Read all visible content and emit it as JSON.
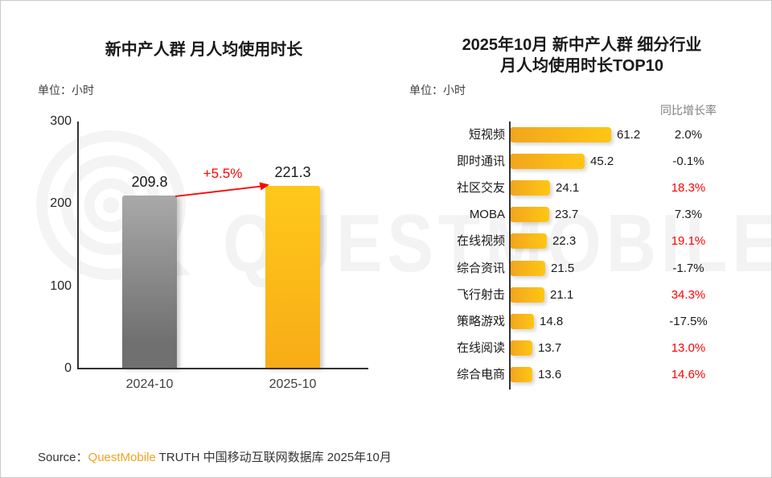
{
  "watermark": {
    "text": "QUESTMOBILE"
  },
  "left_chart": {
    "title": "新中产人群 月人均使用时长",
    "unit_label": "单位：小时",
    "y_ticks": [
      "300",
      "200",
      "100",
      "0"
    ],
    "y_max": 300,
    "categories": [
      "2024-10",
      "2025-10"
    ],
    "values": [
      209.8,
      221.3
    ],
    "value_labels": [
      "209.8",
      "221.3"
    ],
    "growth_label": "+5.5%"
  },
  "right_chart": {
    "title_line1": "2025年10月 新中产人群 细分行业",
    "title_line2": "月人均使用时长TOP10",
    "unit_label": "单位：小时",
    "growth_header": "同比增长率",
    "rows": [
      {
        "label": "短视频",
        "value": 61.2,
        "value_label": "61.2",
        "growth": "2.0%",
        "growth_red": false
      },
      {
        "label": "即时通讯",
        "value": 45.2,
        "value_label": "45.2",
        "growth": "-0.1%",
        "growth_red": false
      },
      {
        "label": "社区交友",
        "value": 24.1,
        "value_label": "24.1",
        "growth": "18.3%",
        "growth_red": true
      },
      {
        "label": "MOBA",
        "value": 23.7,
        "value_label": "23.7",
        "growth": "7.3%",
        "growth_red": false
      },
      {
        "label": "在线视频",
        "value": 22.3,
        "value_label": "22.3",
        "growth": "19.1%",
        "growth_red": true
      },
      {
        "label": "综合资讯",
        "value": 21.5,
        "value_label": "21.5",
        "growth": "-1.7%",
        "growth_red": false
      },
      {
        "label": "飞行射击",
        "value": 21.1,
        "value_label": "21.1",
        "growth": "34.3%",
        "growth_red": true
      },
      {
        "label": "策略游戏",
        "value": 14.8,
        "value_label": "14.8",
        "growth": "-17.5%",
        "growth_red": false
      },
      {
        "label": "在线阅读",
        "value": 13.7,
        "value_label": "13.7",
        "growth": "13.0%",
        "growth_red": true
      },
      {
        "label": "综合电商",
        "value": 13.6,
        "value_label": "13.6",
        "growth": "14.6%",
        "growth_red": true
      }
    ]
  },
  "source": {
    "prefix": "Source：",
    "brand": "QuestMobile",
    "suffix": " TRUTH 中国移动互联网数据库 2025年10月"
  },
  "colors": {
    "red": "#ff0000",
    "text_dark": "#1a1a1a",
    "brand_orange": "#f7a11e",
    "bar_yellow_start": "#f2a51e",
    "bar_yellow_end": "#ffc613",
    "bar_gray_top": "#a9a9a9",
    "bar_gray_bottom": "#707070"
  },
  "chart_data": [
    {
      "type": "bar",
      "title": "新中产人群 月人均使用时长",
      "unit": "小时",
      "categories": [
        "2024-10",
        "2025-10"
      ],
      "values": [
        209.8,
        221.3
      ],
      "ylim": [
        0,
        300
      ],
      "yticks": [
        0,
        100,
        200,
        300
      ],
      "annotations": [
        "+5.5%"
      ],
      "bar_colors": [
        "#8c8c8c",
        "#fcb814"
      ],
      "grid": false,
      "legend": false
    },
    {
      "type": "bar",
      "orientation": "horizontal",
      "title": "2025年10月 新中产人群 细分行业 月人均使用时长TOP10",
      "unit": "小时",
      "categories": [
        "短视频",
        "即时通讯",
        "社区交友",
        "MOBA",
        "在线视频",
        "综合资讯",
        "飞行射击",
        "策略游戏",
        "在线阅读",
        "综合电商"
      ],
      "values": [
        61.2,
        45.2,
        24.1,
        23.7,
        22.3,
        21.5,
        21.1,
        14.8,
        13.7,
        13.6
      ],
      "yoy_growth_header": "同比增长率",
      "yoy_growth": [
        "2.0%",
        "-0.1%",
        "18.3%",
        "7.3%",
        "19.1%",
        "-1.7%",
        "34.3%",
        "-17.5%",
        "13.0%",
        "14.6%"
      ],
      "grid": false,
      "legend": false
    }
  ]
}
